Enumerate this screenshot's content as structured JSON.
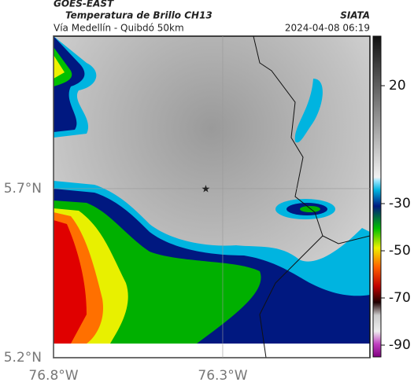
{
  "header": {
    "source": "GOES-EAST",
    "title": "Temperatura de Brillo CH13",
    "subtitle": "Vía Medellín - Quibdó 50km",
    "credit": "SIATA",
    "timestamp": "2024-04-08 06:19"
  },
  "map": {
    "xlim": [
      -76.8,
      -75.865
    ],
    "ylim": [
      5.2,
      6.151
    ],
    "xticks": [
      {
        "value": -76.8,
        "label": "76.8°W"
      },
      {
        "value": -76.3,
        "label": "76.3°W"
      }
    ],
    "yticks": [
      {
        "value": 5.7,
        "label": "5.7°N"
      },
      {
        "value": 5.2,
        "label": "5.2°N"
      }
    ],
    "marker": {
      "lon": -76.35,
      "lat": 5.7
    }
  },
  "colorbar": {
    "range": [
      -95,
      41
    ],
    "ticks": [
      20,
      -30,
      -50,
      -70,
      -90
    ]
  }
}
